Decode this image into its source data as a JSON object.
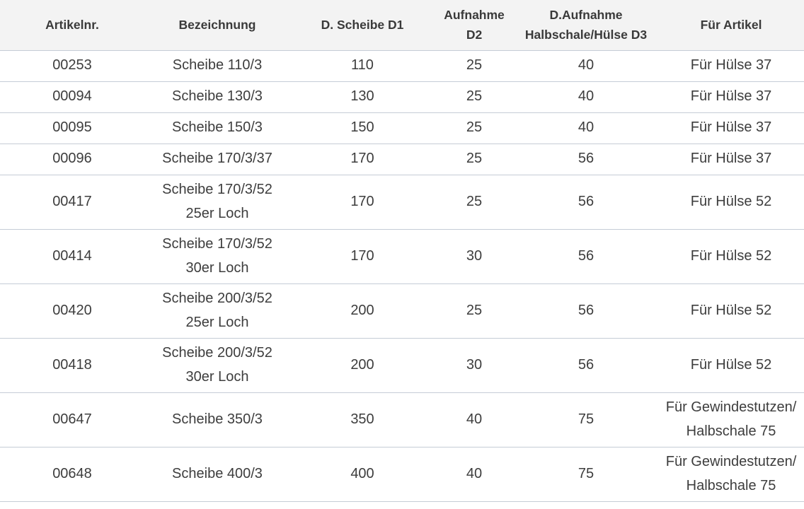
{
  "headers": {
    "artikelnr": "Artikelnr.",
    "bezeichnung": "Bezeichnung",
    "scheibe_d1": "D. Scheibe D1",
    "aufnahme_d2_line1": "Aufnahme",
    "aufnahme_d2_line2": "D2",
    "aufnahme_d3_line1": "D.Aufnahme",
    "aufnahme_d3_line2": "Halbschale/Hülse D3",
    "fuer_artikel": "Für Artikel"
  },
  "rows": [
    {
      "artikelnr": "00253",
      "bez1": "Scheibe 110/3",
      "bez2": "",
      "d1": "110",
      "d2": "25",
      "d3": "40",
      "fuer1": "Für Hülse 37",
      "fuer2": ""
    },
    {
      "artikelnr": "00094",
      "bez1": "Scheibe 130/3",
      "bez2": "",
      "d1": "130",
      "d2": "25",
      "d3": "40",
      "fuer1": "Für Hülse 37",
      "fuer2": ""
    },
    {
      "artikelnr": "00095",
      "bez1": "Scheibe 150/3",
      "bez2": "",
      "d1": "150",
      "d2": "25",
      "d3": "40",
      "fuer1": "Für Hülse 37",
      "fuer2": ""
    },
    {
      "artikelnr": "00096",
      "bez1": "Scheibe 170/3/37",
      "bez2": "",
      "d1": "170",
      "d2": "25",
      "d3": "56",
      "fuer1": "Für Hülse 37",
      "fuer2": ""
    },
    {
      "artikelnr": "00417",
      "bez1": "Scheibe 170/3/52",
      "bez2": "25er Loch",
      "d1": "170",
      "d2": "25",
      "d3": "56",
      "fuer1": "Für Hülse 52",
      "fuer2": ""
    },
    {
      "artikelnr": "00414",
      "bez1": "Scheibe 170/3/52",
      "bez2": "30er Loch",
      "d1": "170",
      "d2": "30",
      "d3": "56",
      "fuer1": "Für Hülse 52",
      "fuer2": ""
    },
    {
      "artikelnr": "00420",
      "bez1": "Scheibe 200/3/52",
      "bez2": "25er Loch",
      "d1": "200",
      "d2": "25",
      "d3": "56",
      "fuer1": "Für Hülse 52",
      "fuer2": ""
    },
    {
      "artikelnr": "00418",
      "bez1": "Scheibe 200/3/52",
      "bez2": "30er Loch",
      "d1": "200",
      "d2": "30",
      "d3": "56",
      "fuer1": "Für Hülse 52",
      "fuer2": ""
    },
    {
      "artikelnr": "00647",
      "bez1": "Scheibe 350/3",
      "bez2": "",
      "d1": "350",
      "d2": "40",
      "d3": "75",
      "fuer1": "Für Gewindestutzen/",
      "fuer2": "Halbschale 75"
    },
    {
      "artikelnr": "00648",
      "bez1": "Scheibe 400/3",
      "bez2": "",
      "d1": "400",
      "d2": "40",
      "d3": "75",
      "fuer1": "Für Gewindestutzen/",
      "fuer2": "Halbschale 75"
    }
  ]
}
